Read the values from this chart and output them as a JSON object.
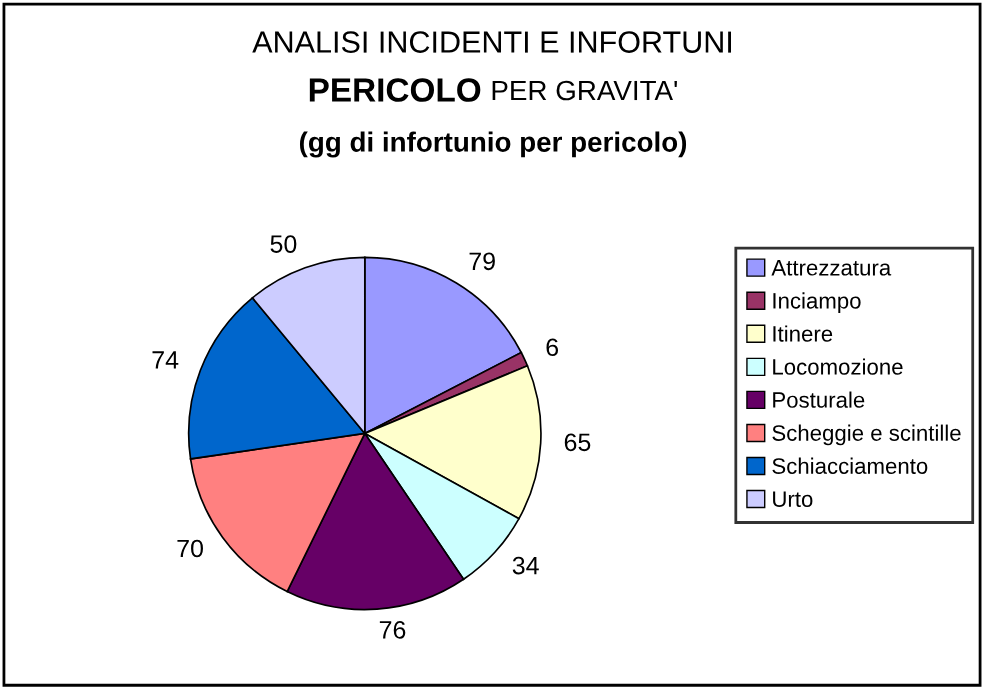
{
  "chart_data": {
    "type": "pie",
    "title": "ANALISI INCIDENTI E INFORTUNI",
    "subtitle": "PERICOLO PER GRAVITA'",
    "annotations": [
      "(gg di infortunio per pericolo)"
    ],
    "categories": [
      "Attrezzatura",
      "Inciampo",
      "Itinere",
      "Locomozione",
      "Posturale",
      "Scheggie e scintille",
      "Schiacciamento",
      "Urto"
    ],
    "values": [
      79,
      6,
      65,
      34,
      76,
      70,
      74,
      50
    ],
    "colors": [
      "#9999ff",
      "#993366",
      "#ffffcc",
      "#ccffff",
      "#660066",
      "#ff8080",
      "#0066cc",
      "#ccccff"
    ],
    "data_labels": true,
    "legend": "right"
  }
}
